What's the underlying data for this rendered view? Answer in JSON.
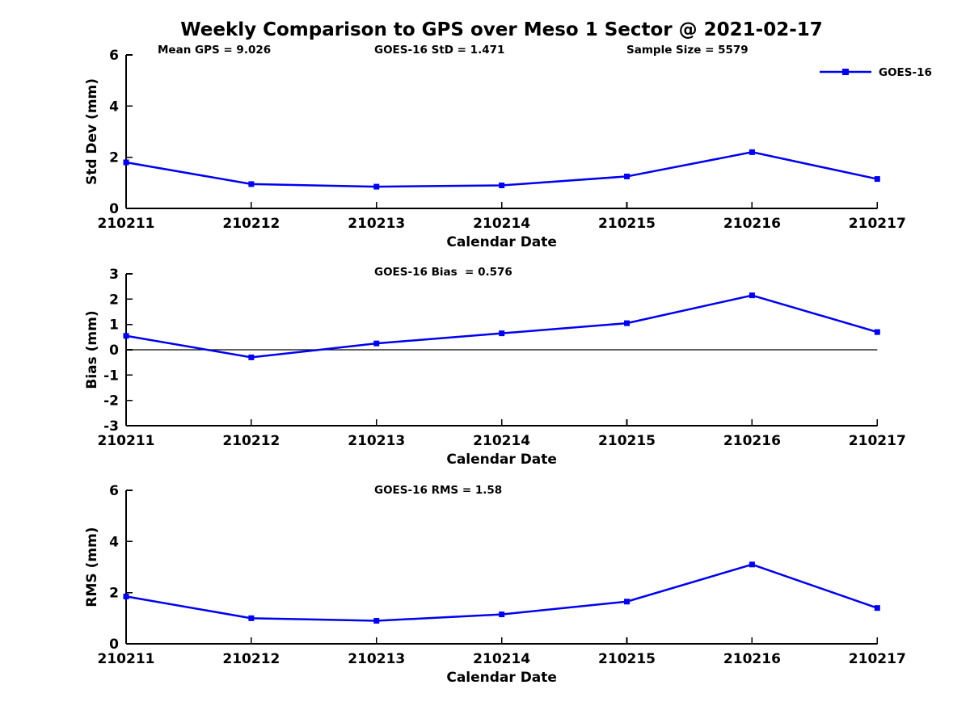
{
  "figure": {
    "title": "Weekly Comparison to GPS over Meso 1 Sector @ 2021-02-17",
    "colors": {
      "line": "#0000EE",
      "text": "#000000",
      "axis": "#000000",
      "background": "#ffffff"
    }
  },
  "chart_data": [
    {
      "type": "line",
      "title": "",
      "categories": [
        "210211",
        "210212",
        "210213",
        "210214",
        "210215",
        "210216",
        "210217"
      ],
      "series": [
        {
          "name": "GOES-16",
          "values": [
            1.8,
            0.95,
            0.85,
            0.9,
            1.25,
            2.2,
            1.15
          ]
        }
      ],
      "xlabel": "Calendar Date",
      "ylabel": "Std Dev (mm)",
      "ylim": [
        0,
        6
      ],
      "yticks": [
        0,
        2,
        4,
        6
      ],
      "grid": false,
      "zero_line": false,
      "marker": "square",
      "annotations": [
        "Mean GPS = 9.026",
        "GOES-16 StD = 1.471",
        "Sample Size = 5579"
      ],
      "legend": {
        "label": "GOES-16",
        "position": "top-right"
      }
    },
    {
      "type": "line",
      "title": "",
      "categories": [
        "210211",
        "210212",
        "210213",
        "210214",
        "210215",
        "210216",
        "210217"
      ],
      "series": [
        {
          "name": "GOES-16",
          "values": [
            0.55,
            -0.3,
            0.25,
            0.65,
            1.05,
            2.15,
            0.7
          ]
        }
      ],
      "xlabel": "Calendar Date",
      "ylabel": "Bias (mm)",
      "ylim": [
        -3,
        3
      ],
      "yticks": [
        -3,
        -2,
        -1,
        0,
        1,
        2,
        3
      ],
      "grid": false,
      "zero_line": true,
      "marker": "square",
      "annotations": [
        "GOES-16 Bias  = 0.576"
      ]
    },
    {
      "type": "line",
      "title": "",
      "categories": [
        "210211",
        "210212",
        "210213",
        "210214",
        "210215",
        "210216",
        "210217"
      ],
      "series": [
        {
          "name": "GOES-16",
          "values": [
            1.85,
            1.0,
            0.9,
            1.15,
            1.65,
            3.1,
            1.4
          ]
        }
      ],
      "xlabel": "Calendar Date",
      "ylabel": "RMS (mm)",
      "ylim": [
        0,
        6
      ],
      "yticks": [
        0,
        2,
        4,
        6
      ],
      "grid": false,
      "zero_line": false,
      "marker": "square",
      "annotations": [
        "GOES-16 RMS = 1.58"
      ]
    }
  ]
}
